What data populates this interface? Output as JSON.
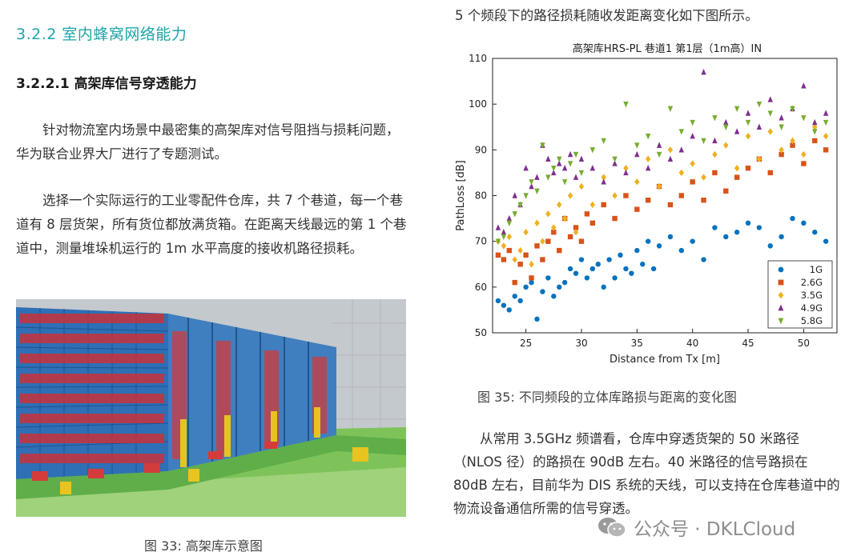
{
  "left": {
    "heading_2": "3.2.2 室内蜂窝网络能力",
    "heading_3": "3.2.2.1 高架库信号穿透能力",
    "paragraph_1": "针对物流室内场景中最密集的高架库对信号阻挡与损耗问题，华为联合业界大厂进行了专题测试。",
    "paragraph_2": "选择一个实际运行的工业零配件仓库，共 7 个巷道，每一个巷道有 8 层货架，所有货位都放满货箱。在距离天线最远的第 1 个巷道中，测量堆垛机运行的 1m 水平高度的接收机路径损耗。",
    "figure_caption": "图 33: 高架库示意图"
  },
  "right": {
    "intro": "5 个频段下的路径损耗随收发距离变化如下图所示。",
    "figure_caption": "图 35: 不同频段的立体库路损与距离的变化图",
    "paragraph": "从常用 3.5GHz 频谱看，仓库中穿透货架的 50 米路径（NLOS 径）的路损在 90dB 左右。40 米路径的信号路损在 80dB 左右，目前华为 DIS 系统的天线，可以支持在仓库巷道中的物流设备通信所需的信号穿透。"
  },
  "watermark": {
    "text": "公众号 · DKLCloud"
  },
  "chart_data": {
    "type": "scatter",
    "title": "高架库HRS-PL 巷道1 第1层（1m高）IN",
    "xlabel": "Distance from Tx [m]",
    "ylabel": "PathLoss [dB]",
    "xlim": [
      22,
      53
    ],
    "ylim": [
      50,
      110
    ],
    "xticks": [
      25,
      30,
      35,
      40,
      45,
      50
    ],
    "yticks": [
      50,
      60,
      70,
      80,
      90,
      100,
      110
    ],
    "grid": false,
    "legend_position": "bottom-right",
    "series": [
      {
        "name": "1G",
        "color": "#0072bd",
        "marker": "circle",
        "x": [
          22.5,
          23.0,
          23.5,
          24.0,
          24.5,
          25.0,
          25.5,
          26.0,
          26.5,
          27.0,
          27.5,
          28.0,
          28.5,
          29.0,
          29.5,
          30.0,
          30.5,
          31.0,
          31.5,
          32.0,
          32.5,
          33.0,
          33.5,
          34.0,
          34.5,
          35.0,
          35.5,
          36.0,
          36.5,
          37.0,
          38.0,
          39.0,
          40.0,
          41.0,
          42.0,
          43.0,
          44.0,
          45.0,
          46.0,
          47.0,
          48.0,
          49.0,
          50.0,
          51.0,
          52.0
        ],
        "y": [
          57,
          56,
          55,
          58,
          57,
          60,
          61,
          53,
          59,
          62,
          58,
          60,
          61,
          64,
          63,
          66,
          62,
          64,
          65,
          60,
          66,
          62,
          67,
          64,
          63,
          68,
          65,
          70,
          64,
          69,
          71,
          68,
          70,
          66,
          73,
          71,
          72,
          74,
          73,
          69,
          71,
          75,
          74,
          72,
          70
        ]
      },
      {
        "name": "2.6G",
        "color": "#d95319",
        "marker": "square",
        "x": [
          22.5,
          23.0,
          23.5,
          24.0,
          24.5,
          25.0,
          25.5,
          26.0,
          26.5,
          27.0,
          27.5,
          28.0,
          28.5,
          29.0,
          29.5,
          30.0,
          30.5,
          31.0,
          32.0,
          33.0,
          34.0,
          35.0,
          36.0,
          37.0,
          38.0,
          39.0,
          40.0,
          41.0,
          42.0,
          43.0,
          44.0,
          45.0,
          46.0,
          47.0,
          48.0,
          49.0,
          50.0,
          51.0,
          52.0
        ],
        "y": [
          67,
          66,
          68,
          61,
          65,
          67,
          62,
          69,
          66,
          70,
          72,
          68,
          75,
          71,
          73,
          70,
          76,
          74,
          78,
          75,
          80,
          77,
          79,
          82,
          78,
          80,
          83,
          79,
          85,
          81,
          84,
          86,
          88,
          85,
          89,
          91,
          87,
          92,
          90
        ]
      },
      {
        "name": "3.5G",
        "color": "#edb120",
        "marker": "diamond",
        "x": [
          22.5,
          23.0,
          23.5,
          24.0,
          24.5,
          25.0,
          25.5,
          26.0,
          26.5,
          27.0,
          27.5,
          28.0,
          28.5,
          29.0,
          29.5,
          30.0,
          31.0,
          32.0,
          33.0,
          34.0,
          35.0,
          36.0,
          37.0,
          38.0,
          39.0,
          40.0,
          41.0,
          42.0,
          43.0,
          44.0,
          45.0,
          46.0,
          47.0,
          48.0,
          49.0,
          50.0,
          51.0,
          52.0
        ],
        "y": [
          70,
          69,
          71,
          66,
          68,
          72,
          65,
          74,
          70,
          76,
          73,
          78,
          75,
          80,
          72,
          82,
          78,
          84,
          80,
          86,
          83,
          88,
          82,
          90,
          85,
          87,
          84,
          89,
          91,
          86,
          93,
          88,
          94,
          90,
          92,
          89,
          95,
          93
        ]
      },
      {
        "name": "4.9G",
        "color": "#7e2f8e",
        "marker": "triangle-up",
        "x": [
          22.5,
          23.0,
          23.5,
          24.0,
          24.5,
          25.0,
          25.5,
          26.0,
          26.5,
          27.0,
          27.5,
          28.0,
          28.5,
          29.0,
          29.5,
          30.0,
          31.0,
          32.0,
          33.0,
          34.0,
          35.0,
          36.0,
          37.0,
          38.0,
          39.0,
          40.0,
          41.0,
          42.0,
          43.0,
          44.0,
          45.0,
          46.0,
          47.0,
          48.0,
          49.0,
          50.0,
          51.0,
          52.0
        ],
        "y": [
          73,
          72,
          75,
          80,
          78,
          86,
          82,
          84,
          91,
          88,
          85,
          87,
          86,
          89,
          84,
          88,
          86,
          83,
          87,
          85,
          89,
          86,
          91,
          88,
          90,
          93,
          107,
          92,
          96,
          94,
          98,
          95,
          101,
          97,
          99,
          104,
          96,
          98
        ]
      },
      {
        "name": "5.8G",
        "color": "#77ac30",
        "marker": "triangle-down",
        "x": [
          22.5,
          23.0,
          23.5,
          24.0,
          24.5,
          25.0,
          25.5,
          26.0,
          26.5,
          27.0,
          27.5,
          28.0,
          28.5,
          29.0,
          29.5,
          30.0,
          31.0,
          32.0,
          33.0,
          34.0,
          35.0,
          36.0,
          37.0,
          38.0,
          39.0,
          40.0,
          41.0,
          42.0,
          43.0,
          44.0,
          45.0,
          46.0,
          47.0,
          48.0,
          49.0,
          50.0,
          51.0,
          52.0
        ],
        "y": [
          70,
          71,
          74,
          76,
          78,
          80,
          83,
          81,
          91,
          84,
          86,
          88,
          83,
          87,
          89,
          85,
          90,
          92,
          88,
          100,
          91,
          93,
          89,
          99,
          94,
          96,
          92,
          97,
          95,
          99,
          96,
          100,
          98,
          95,
          99,
          97,
          94,
          96
        ]
      }
    ]
  }
}
